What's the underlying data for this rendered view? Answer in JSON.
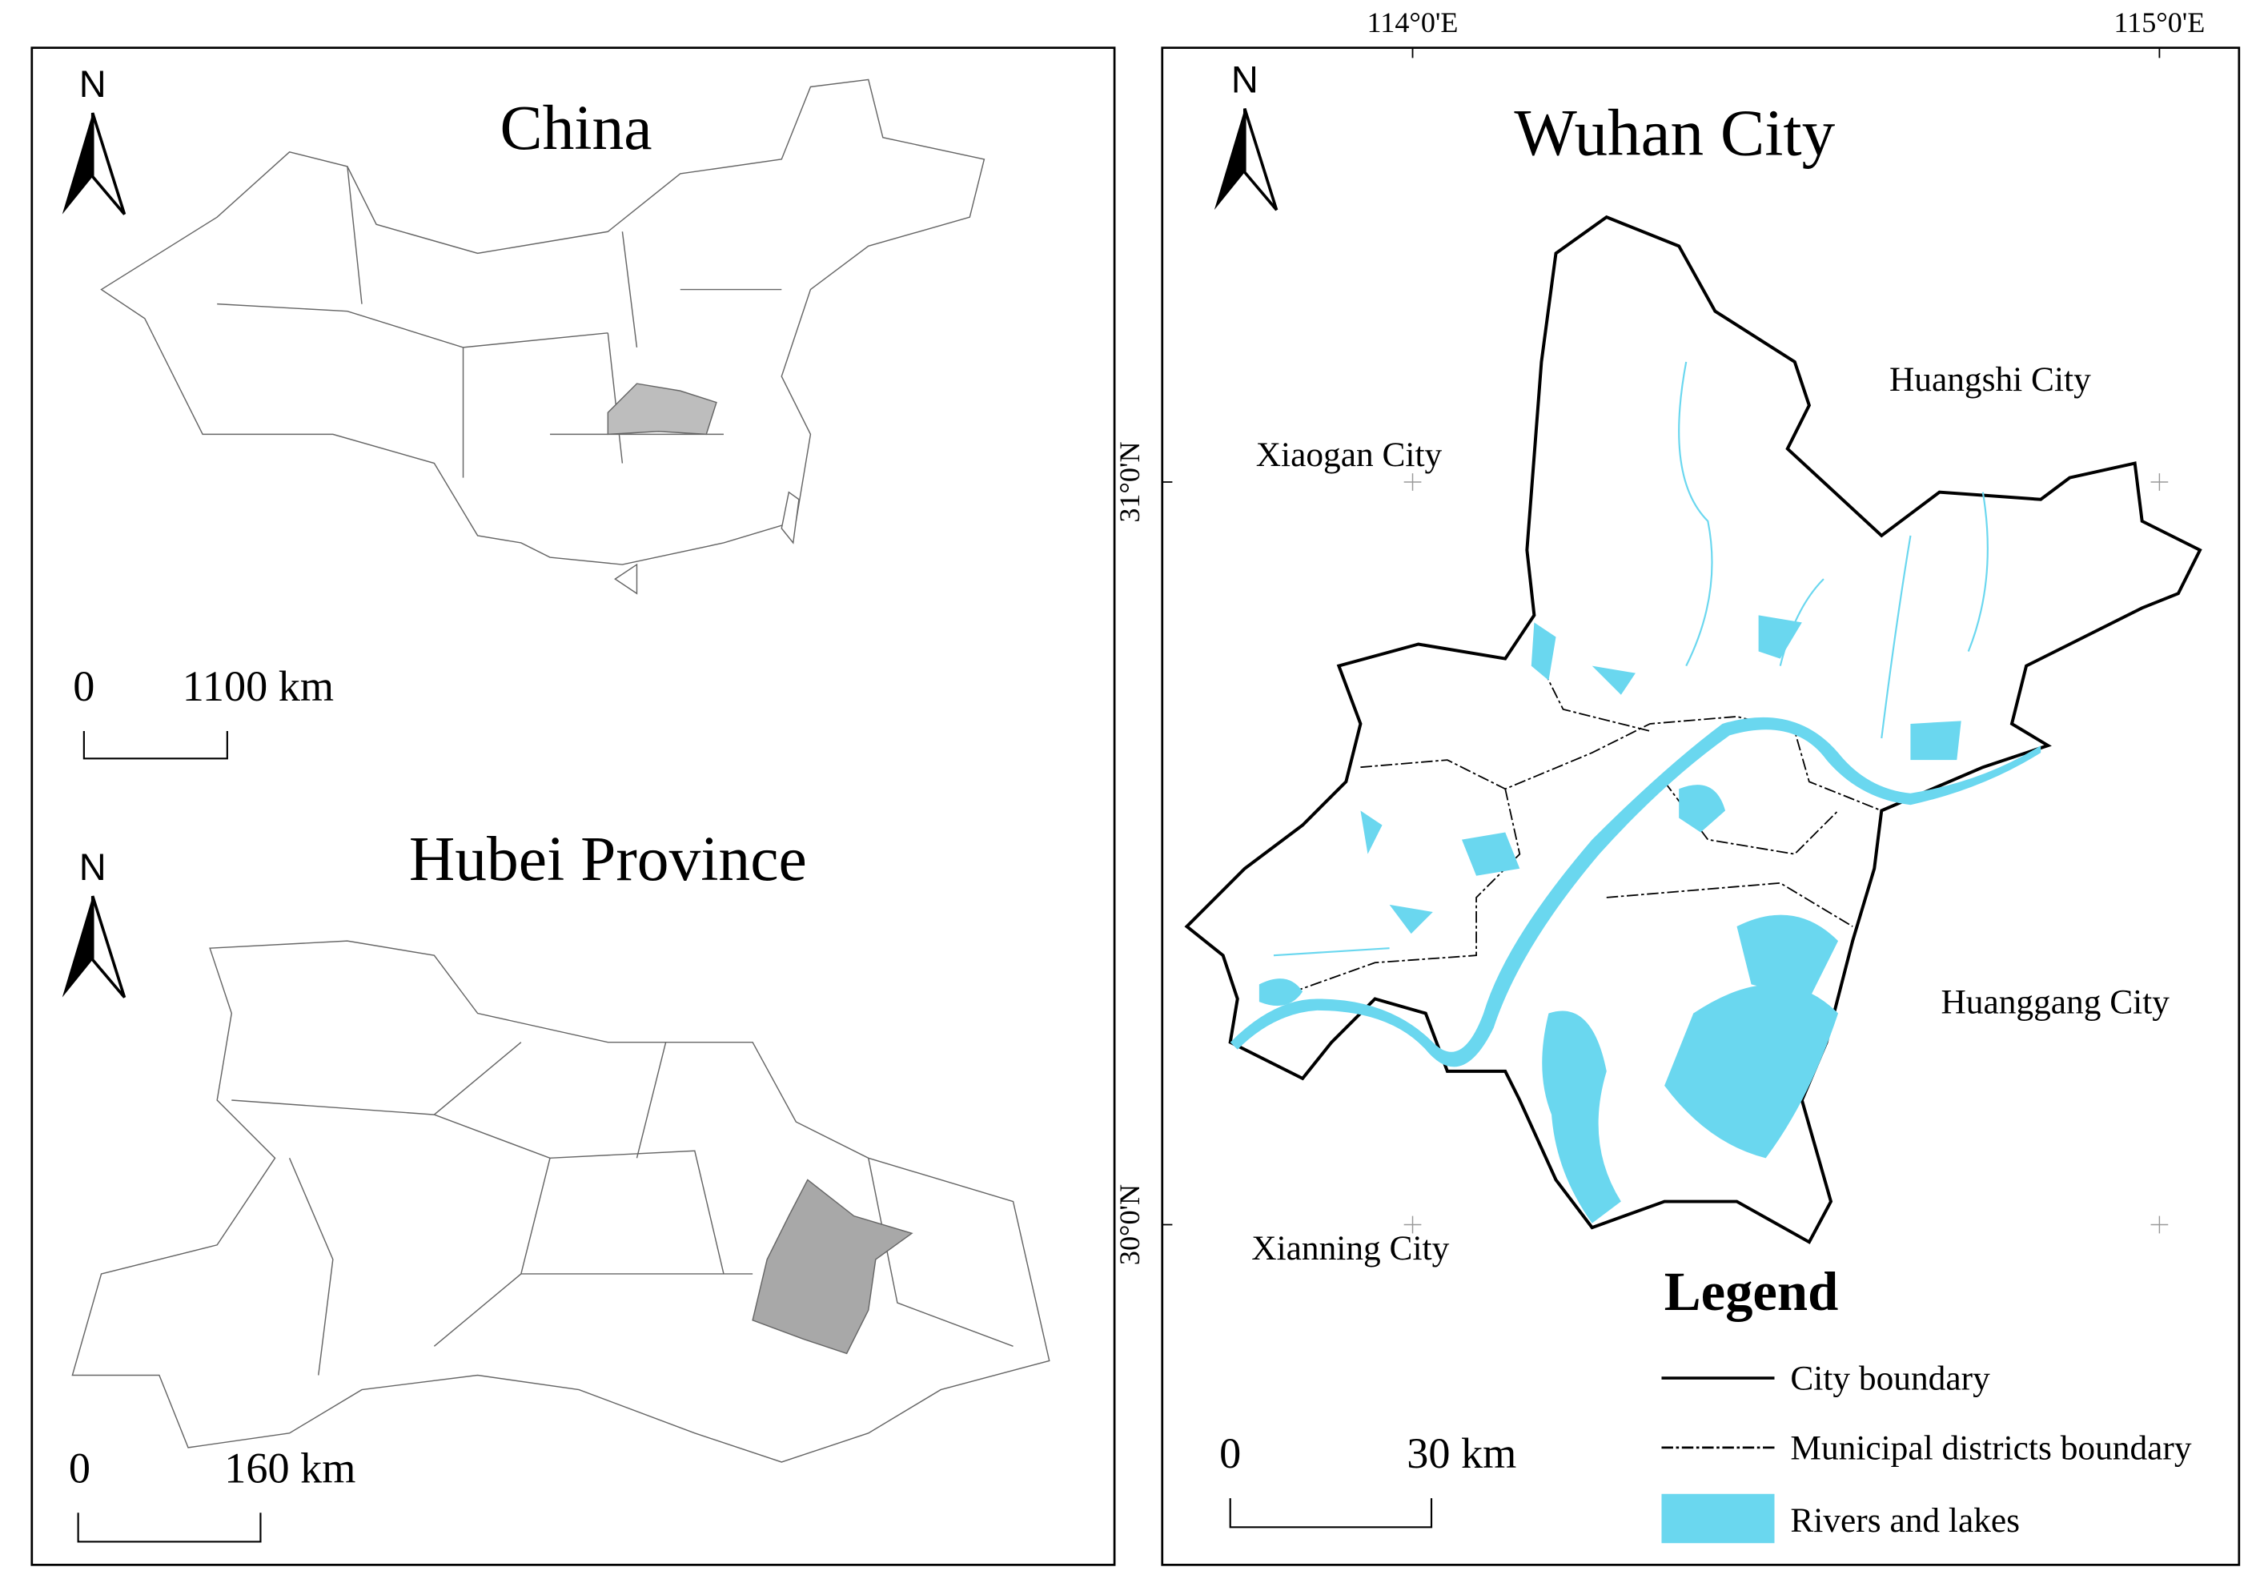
{
  "china": {
    "north": "N",
    "title": "China",
    "scale_zero": "0",
    "scale_label": "1100  km"
  },
  "hubei": {
    "north": "N",
    "title": "Hubei Province",
    "scale_zero": "0",
    "scale_label": "160 km"
  },
  "wuhan": {
    "north": "N",
    "title": "Wuhan City",
    "graticule": [
      "114°0'E",
      "115°0'E",
      "31°0'N",
      "30°0'N"
    ],
    "places": [
      "Huangshi City",
      "Xiaogan City",
      "Huanggang City",
      "Xianning City"
    ],
    "scale_zero": "0",
    "scale_label": "30 km",
    "legend": {
      "title": "Legend",
      "items": [
        "City boundary",
        "Municipal districts boundary",
        "Rivers and lakes"
      ]
    }
  }
}
